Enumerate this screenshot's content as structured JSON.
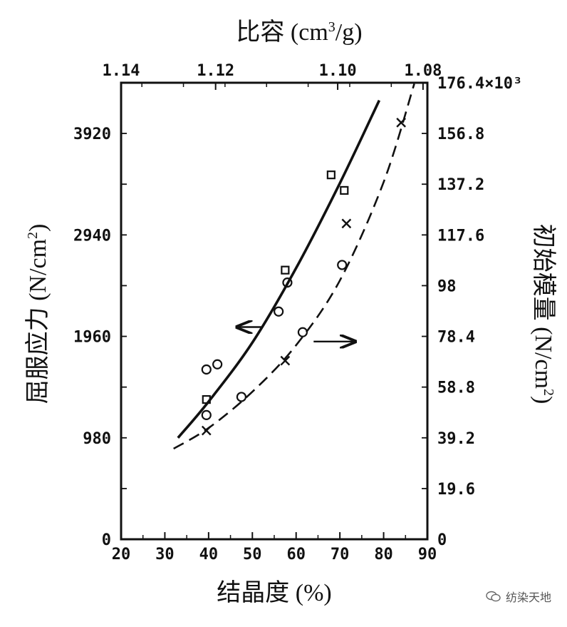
{
  "chart_data": {
    "type": "scatter",
    "top_axis": {
      "label": "比容 (cm3/g)",
      "label_main": "比容 (cm",
      "label_sup": "3",
      "label_end": "/g)",
      "ticks": [
        {
          "at": 20,
          "label": "1.14"
        },
        {
          "at": 41.6,
          "label": "1.12"
        },
        {
          "at": 69.5,
          "label": "1.10"
        },
        {
          "at": 89,
          "label": "1.08"
        }
      ]
    },
    "xaxis": {
      "label": "结晶度 (%)",
      "range": [
        20,
        90
      ],
      "ticks": [
        20,
        30,
        40,
        50,
        60,
        70,
        80,
        90
      ]
    },
    "yaxis_left": {
      "label": "屈服应力 (N/cm2)",
      "label_main": "屈服应力 (N/cm",
      "label_sup": "2",
      "label_end": ")",
      "range": [
        0,
        4410
      ],
      "ticks": [
        0,
        980,
        1960,
        2940,
        3920
      ]
    },
    "yaxis_right": {
      "label": "初始模量 (N/cm2)",
      "label_main": "初始模量 (N/cm",
      "label_sup": "2",
      "label_end": ")",
      "ticks": [
        {
          "value": 0,
          "label": "0"
        },
        {
          "value": 19.6,
          "label": "19.6"
        },
        {
          "value": 39.2,
          "label": "39.2"
        },
        {
          "value": 58.8,
          "label": "58.8"
        },
        {
          "value": 78.4,
          "label": "78.4"
        },
        {
          "value": 98,
          "label": "98"
        },
        {
          "value": 117.6,
          "label": "117.6"
        },
        {
          "value": 137.2,
          "label": "137.2"
        },
        {
          "value": 156.8,
          "label": "156.8"
        },
        {
          "value": 176.4,
          "label": "176.4×10³"
        }
      ],
      "range": [
        0,
        176.4
      ]
    },
    "series": [
      {
        "axis": "left",
        "line": "solid",
        "fit": {
          "x": [
            33,
            40,
            50,
            60,
            70,
            79
          ],
          "y": [
            980,
            1330,
            1900,
            2620,
            3440,
            4240
          ]
        },
        "points": [
          {
            "marker": "circle",
            "x": 39.5,
            "y": 1640
          },
          {
            "marker": "circle",
            "x": 42,
            "y": 1690
          },
          {
            "marker": "square",
            "x": 39.5,
            "y": 1350
          },
          {
            "marker": "circle",
            "x": 39.5,
            "y": 1200
          },
          {
            "marker": "square",
            "x": 57.5,
            "y": 2600
          },
          {
            "marker": "circle",
            "x": 58,
            "y": 2480
          },
          {
            "marker": "square",
            "x": 68,
            "y": 3520
          },
          {
            "marker": "square",
            "x": 71,
            "y": 3370
          }
        ]
      },
      {
        "axis": "right",
        "line": "dashed",
        "fit": {
          "x": [
            32,
            40,
            50,
            60,
            70,
            80,
            87
          ],
          "y": [
            35,
            43,
            57,
            75,
            100,
            138,
            176
          ]
        },
        "points": [
          {
            "marker": "cross",
            "x": 39.5,
            "y": 42
          },
          {
            "marker": "circle",
            "x": 47.5,
            "y": 55
          },
          {
            "marker": "cross",
            "x": 57.5,
            "y": 69
          },
          {
            "marker": "circle",
            "x": 61.5,
            "y": 80
          },
          {
            "marker": "circle",
            "x": 56,
            "y": 88
          },
          {
            "marker": "circle",
            "x": 70.5,
            "y": 106
          },
          {
            "marker": "cross",
            "x": 71.5,
            "y": 122
          },
          {
            "marker": "cross",
            "x": 84,
            "y": 161
          }
        ]
      }
    ],
    "arrows": [
      {
        "direction": "left",
        "series": "left-axis"
      },
      {
        "direction": "right",
        "series": "right-axis"
      }
    ]
  },
  "watermark": {
    "text": "纺染天地",
    "icon": "wechat-icon"
  }
}
